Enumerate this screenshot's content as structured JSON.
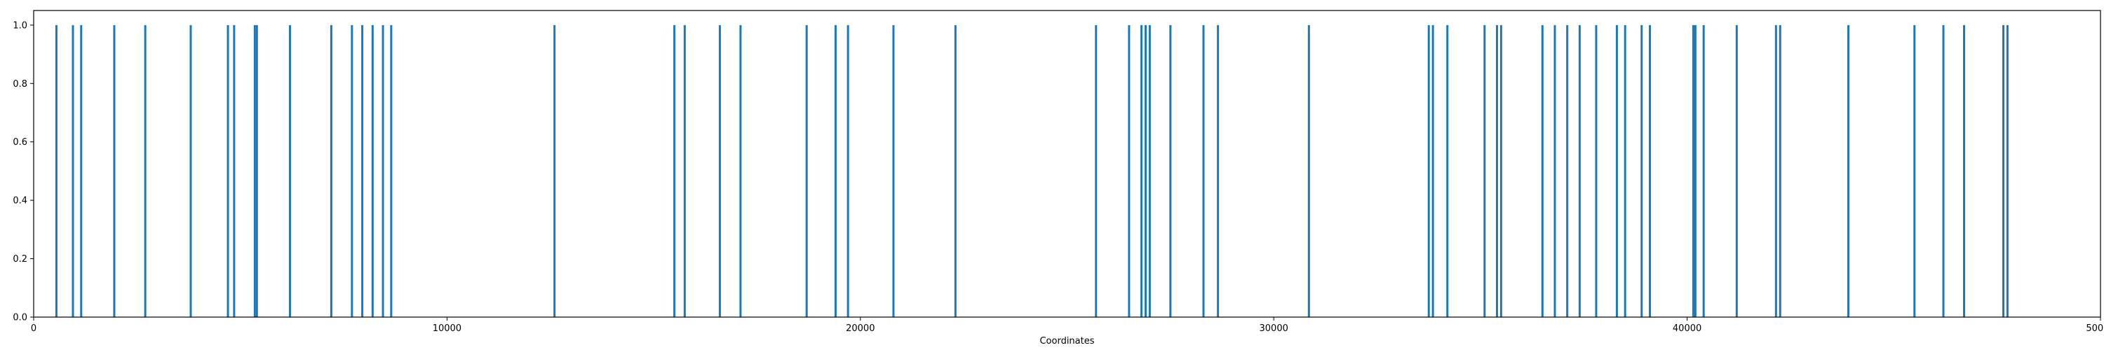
{
  "chart_data": {
    "type": "bar",
    "title": "",
    "xlabel": "Coordinates",
    "ylabel": "",
    "xlim": [
      0,
      50000
    ],
    "ylim": [
      0.0,
      1.05
    ],
    "x_ticks": [
      0,
      10000,
      20000,
      30000,
      40000,
      50000
    ],
    "y_ticks": [
      0.0,
      0.2,
      0.4,
      0.6,
      0.8,
      1.0
    ],
    "x_tick_labels": [
      "0",
      "10000",
      "20000",
      "30000",
      "40000",
      "50000"
    ],
    "y_tick_labels": [
      "0.0",
      "0.2",
      "0.4",
      "0.6",
      "0.8",
      "1.0"
    ],
    "grid": false,
    "legend": "none",
    "bar_color": "#1f77b4",
    "x": [
      550,
      950,
      1150,
      1950,
      2700,
      3800,
      4700,
      4850,
      5350,
      5400,
      6200,
      7200,
      7700,
      7950,
      8200,
      8450,
      8650,
      12600,
      15500,
      15750,
      16600,
      17100,
      18700,
      19400,
      19700,
      20800,
      22300,
      25700,
      26500,
      26800,
      26900,
      27000,
      27500,
      28300,
      28650,
      30850,
      33750,
      33850,
      34200,
      35100,
      35400,
      35500,
      36500,
      36800,
      37100,
      37400,
      37800,
      38300,
      38500,
      38900,
      39100,
      40150,
      40200,
      40400,
      41200,
      42150,
      42250,
      43900,
      45500,
      46200,
      46700,
      47650,
      47750
    ],
    "values": [
      1.0,
      1.0,
      1.0,
      1.0,
      1.0,
      1.0,
      1.0,
      1.0,
      1.0,
      1.0,
      1.0,
      1.0,
      1.0,
      1.0,
      1.0,
      1.0,
      1.0,
      1.0,
      1.0,
      1.0,
      1.0,
      1.0,
      1.0,
      1.0,
      1.0,
      1.0,
      1.0,
      1.0,
      1.0,
      1.0,
      1.0,
      1.0,
      1.0,
      1.0,
      1.0,
      1.0,
      1.0,
      1.0,
      1.0,
      1.0,
      1.0,
      1.0,
      1.0,
      1.0,
      1.0,
      1.0,
      1.0,
      1.0,
      1.0,
      1.0,
      1.0,
      1.0,
      1.0,
      1.0,
      1.0,
      1.0,
      1.0,
      1.0,
      1.0,
      1.0,
      1.0,
      1.0,
      1.0
    ]
  }
}
